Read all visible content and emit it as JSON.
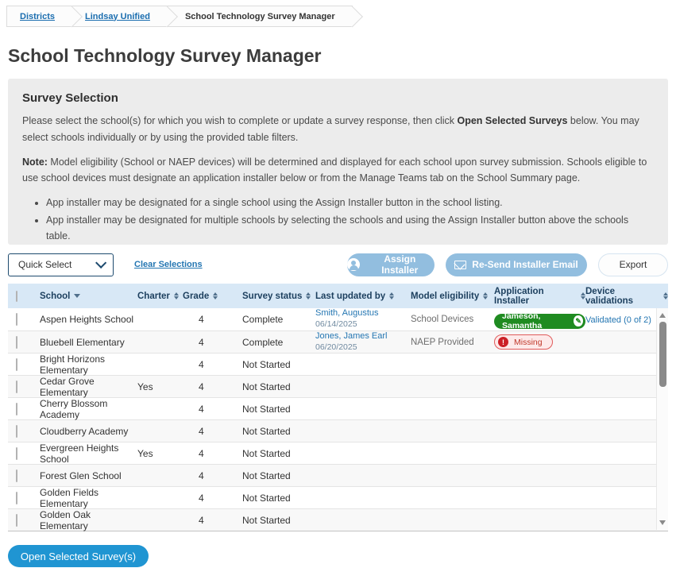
{
  "breadcrumb": {
    "items": [
      {
        "label": "Districts"
      },
      {
        "label": "Lindsay Unified"
      },
      {
        "label": "School Technology Survey Manager"
      }
    ]
  },
  "page": {
    "title": "School Technology Survey Manager"
  },
  "panel": {
    "heading": "Survey Selection",
    "intro_pre": "Please select the school(s) for which you wish to complete or update a survey response, then click ",
    "intro_bold": "Open Selected Surveys",
    "intro_post": " below. You may select schools individually or by using the provided table filters.",
    "note_label": "Note:",
    "note_text": " Model eligibility (School or NAEP devices) will be determined and displayed for each school upon survey submission. Schools eligible to use school devices must designate an application installer below or from the Manage Teams tab on the School Summary page.",
    "bullets": [
      "App installer may be designated for a single school using the Assign Installer button in the school listing.",
      "App installer may be designated for multiple schools by selecting the schools and using the Assign Installer button above the schools table."
    ]
  },
  "toolbar": {
    "quick_select": "Quick Select",
    "clear_selections": "Clear Selections",
    "assign_installer": "Assign Installer",
    "resend_email": "Re-Send Installer Email",
    "export": "Export"
  },
  "table": {
    "headers": [
      "School",
      "Charter",
      "Grade",
      "Survey status",
      "Last updated by",
      "Model eligibility",
      "Application Installer",
      "Device validations"
    ],
    "rows": [
      {
        "school": "Aspen Heights School",
        "charter": "",
        "grade": "4",
        "status": "Complete",
        "updated_by": "Smith, Augustus",
        "updated_date": "06/14/2025",
        "model": "School Devices",
        "installer": "Jameson, Samantha",
        "validations": "Validated (0 of 2)"
      },
      {
        "school": "Bluebell Elementary",
        "charter": "",
        "grade": "4",
        "status": "Complete",
        "updated_by": "Jones, James Earl",
        "updated_date": "06/20/2025",
        "model": "NAEP Provided",
        "missing": "Missing"
      },
      {
        "school": "Bright Horizons Elementary",
        "charter": "",
        "grade": "4",
        "status": "Not Started"
      },
      {
        "school": "Cedar Grove Elementary",
        "charter": "Yes",
        "grade": "4",
        "status": "Not Started"
      },
      {
        "school": "Cherry Blossom Academy",
        "charter": "",
        "grade": "4",
        "status": "Not Started"
      },
      {
        "school": "Cloudberry Academy",
        "charter": "",
        "grade": "4",
        "status": "Not Started"
      },
      {
        "school": "Evergreen Heights School",
        "charter": "Yes",
        "grade": "4",
        "status": "Not Started"
      },
      {
        "school": "Forest Glen School",
        "charter": "",
        "grade": "4",
        "status": "Not Started"
      },
      {
        "school": "Golden Fields Elementary",
        "charter": "",
        "grade": "4",
        "status": "Not Started"
      },
      {
        "school": "Golden Oak Elementary",
        "charter": "",
        "grade": "4",
        "status": "Not Started"
      }
    ]
  },
  "footer": {
    "open_button": "Open Selected Survey(s)"
  },
  "icons": {
    "quick_select": "chevron-down-icon",
    "assign_installer": "person-icon",
    "resend_email": "envelope-icon",
    "installer_pill": "pencil-icon",
    "installer_pill_glyph": "✎",
    "missing_pill": "exclamation-icon",
    "missing_pill_glyph": "!",
    "column_sort": "sort-updown-icon",
    "school_sort": "sort-descending-icon",
    "scroll_up": "scroll-up-icon",
    "scroll_down": "scroll-down-icon"
  },
  "colors": {
    "accent_blue": "#2095d2",
    "link_blue": "#2476b2",
    "header_bg": "#d8e8f6",
    "header_text": "#1c3f5e",
    "disabled_button": "#92bedf",
    "installer_green": "#1f8b21",
    "missing_red": "#cb2026",
    "panel_bg": "#ececec"
  }
}
